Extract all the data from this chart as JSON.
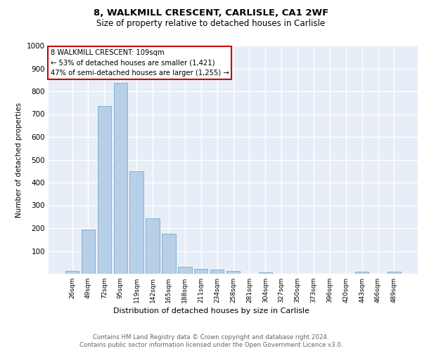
{
  "title1": "8, WALKMILL CRESCENT, CARLISLE, CA1 2WF",
  "title2": "Size of property relative to detached houses in Carlisle",
  "xlabel": "Distribution of detached houses by size in Carlisle",
  "ylabel": "Number of detached properties",
  "categories": [
    "26sqm",
    "49sqm",
    "72sqm",
    "95sqm",
    "119sqm",
    "142sqm",
    "165sqm",
    "188sqm",
    "211sqm",
    "234sqm",
    "258sqm",
    "281sqm",
    "304sqm",
    "327sqm",
    "350sqm",
    "373sqm",
    "396sqm",
    "420sqm",
    "443sqm",
    "466sqm",
    "489sqm"
  ],
  "values": [
    13,
    193,
    735,
    838,
    450,
    243,
    175,
    30,
    22,
    17,
    13,
    0,
    7,
    0,
    0,
    0,
    0,
    0,
    8,
    0,
    8
  ],
  "bar_color": "#b8cfe8",
  "bar_edge_color": "#7aaad0",
  "annotation_line1": "8 WALKMILL CRESCENT: 109sqm",
  "annotation_line2": "← 53% of detached houses are smaller (1,421)",
  "annotation_line3": "47% of semi-detached houses are larger (1,255) →",
  "annotation_box_color": "#ffffff",
  "annotation_box_edge_color": "#cc0000",
  "footer1": "Contains HM Land Registry data © Crown copyright and database right 2024.",
  "footer2": "Contains public sector information licensed under the Open Government Licence v3.0.",
  "plot_background": "#e8eef8",
  "grid_color": "#ffffff",
  "ylim": [
    0,
    1000
  ],
  "yticks": [
    0,
    100,
    200,
    300,
    400,
    500,
    600,
    700,
    800,
    900,
    1000
  ]
}
